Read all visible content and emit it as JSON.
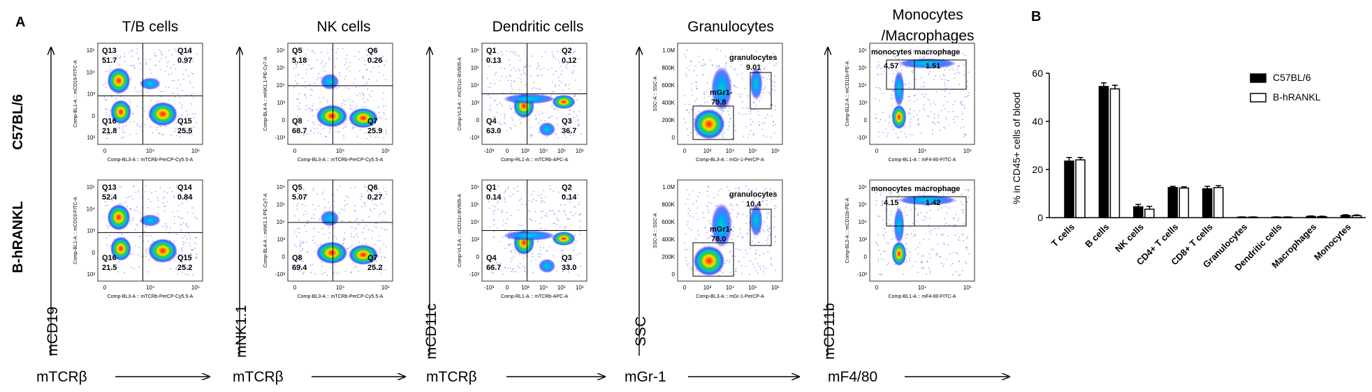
{
  "figure": {
    "panel_a_letter": "A",
    "panel_b_letter": "B",
    "row_labels": [
      "C57BL/6",
      "B-hRANKL"
    ],
    "column_titles": [
      [
        "T/B cells"
      ],
      [
        "NK cells"
      ],
      [
        "Dendritic cells"
      ],
      [
        "Granulocytes"
      ],
      [
        "Monocytes",
        "/Macrophages"
      ]
    ],
    "marker_y_labels": [
      "mCD19",
      "mNK1.1",
      "mCD11c",
      "SSC",
      "mCD11b"
    ],
    "marker_x_labels": [
      "mTCRβ",
      "mTCRβ",
      "mTCRβ",
      "mGr-1",
      "mF4/80"
    ]
  },
  "flow_plots": [
    {
      "name": "tb",
      "x_axis_label": "Comp-BL3-A :: mTCRb-PerCP-Cy5.5-A",
      "y_axis_label": "Comp-BL1-A :: mCD19-FITC-A",
      "x_ticks": [
        "0",
        "10⁴",
        "10⁵"
      ],
      "y_ticks": [
        "10⁵",
        "10⁴",
        "10³",
        "0",
        "10²"
      ],
      "gate_type": "quadrant",
      "quadrant_names": [
        "Q13",
        "Q14",
        "Q16",
        "Q15"
      ],
      "rows": [
        {
          "values": [
            "51.7",
            "0.97",
            "21.8",
            "25.5"
          ]
        },
        {
          "values": [
            "52.4",
            "0.84",
            "21.5",
            "25.2"
          ]
        }
      ]
    },
    {
      "name": "nk",
      "x_axis_label": "Comp-BL3-A :: mTCRb-PerCP-Cy5.5-A",
      "y_axis_label": "Comp-BL4-A :: mNK1.1-PE-Cy7-A",
      "x_ticks": [
        "0",
        "10⁴",
        "10⁵"
      ],
      "y_ticks": [
        "10⁶",
        "10⁵",
        "10⁴",
        "10³",
        "0",
        "-10³"
      ],
      "gate_type": "quadrant",
      "quadrant_names": [
        "Q5",
        "Q6",
        "Q8",
        "Q7"
      ],
      "rows": [
        {
          "values": [
            "5.18",
            "0.26",
            "68.7",
            "25.9"
          ]
        },
        {
          "values": [
            "5.07",
            "0.27",
            "69.4",
            "25.2"
          ]
        }
      ]
    },
    {
      "name": "dc",
      "x_axis_label": "Comp-RL1-A :: mTCRb-APC-A",
      "y_axis_label": "Comp-VL3-A :: mCD11c-BV605-A",
      "x_ticks": [
        "-10³",
        "0",
        "10³",
        "10⁴",
        "10⁵",
        "10⁶"
      ],
      "y_ticks": [
        "10⁶",
        "10⁵",
        "10⁴",
        "10³",
        "0",
        "-10³"
      ],
      "gate_type": "quadrant",
      "quadrant_names": [
        "Q1",
        "Q2",
        "Q4",
        "Q3"
      ],
      "rows": [
        {
          "values": [
            "0.13",
            "0.12",
            "63.0",
            "36.7"
          ]
        },
        {
          "values": [
            "0.14",
            "0.14",
            "66.7",
            "33.0"
          ]
        }
      ]
    },
    {
      "name": "gran",
      "x_axis_label": "Comp-BL3-A :: mGr-1-PerCP-A",
      "y_axis_label": "SSC-A :: SSC-A",
      "x_ticks": [
        "0",
        "10³",
        "10⁴",
        "10⁵",
        "10⁶"
      ],
      "y_ticks": [
        "1.0M",
        "800K",
        "600K",
        "400K",
        "200K",
        "0"
      ],
      "gate_type": "gr1",
      "gate_names": [
        "granulocytes",
        "mGr1-"
      ],
      "rows": [
        {
          "values": [
            "9.01",
            "79.8"
          ]
        },
        {
          "values": [
            "10.4",
            "78.0"
          ]
        }
      ]
    },
    {
      "name": "mono",
      "x_axis_label": "Comp-BL1-A :: mF4-80-FITC-A",
      "y_axis_label": "Comp-BL2-A :: mCD11b-PE-A",
      "x_ticks": [
        "0",
        "10⁴",
        "10⁵"
      ],
      "y_ticks": [
        "10⁶",
        "10⁵",
        "10⁴",
        "10³",
        "0",
        "-10³"
      ],
      "gate_type": "mono",
      "gate_names": [
        "monocytes",
        "macrophage"
      ],
      "rows": [
        {
          "values": [
            "4.57",
            "1.51"
          ]
        },
        {
          "values": [
            "4.15",
            "1.42"
          ]
        }
      ]
    }
  ],
  "chart_data": {
    "type": "bar",
    "ylabel": "% in CD45+ cells of blood",
    "ylim": [
      0,
      60
    ],
    "yticks": [
      0,
      20,
      40,
      60
    ],
    "grid": false,
    "legend_position": "top-right",
    "categories": [
      "T cells",
      "B cells",
      "NK cells",
      "CD4+ T cells",
      "CD8+ T cells",
      "Granulocytes",
      "Dendritic cells",
      "Macrophages",
      "Monocytes"
    ],
    "series": [
      {
        "name": "C57BL/6",
        "color": "#000000",
        "fill": "solid",
        "values": [
          23.5,
          54.5,
          4.5,
          12.5,
          12.0,
          0.2,
          0.2,
          0.5,
          0.9
        ],
        "errors": [
          1.5,
          1.5,
          1.0,
          0.5,
          1.0,
          0.1,
          0.1,
          0.2,
          0.3
        ]
      },
      {
        "name": "B-hRANKL",
        "color": "#000000",
        "fill": "open",
        "values": [
          24.0,
          53.5,
          3.5,
          12.3,
          12.5,
          0.2,
          0.2,
          0.4,
          0.8
        ],
        "errors": [
          1.0,
          1.5,
          1.2,
          0.5,
          0.8,
          0.1,
          0.1,
          0.2,
          0.3
        ]
      }
    ]
  }
}
